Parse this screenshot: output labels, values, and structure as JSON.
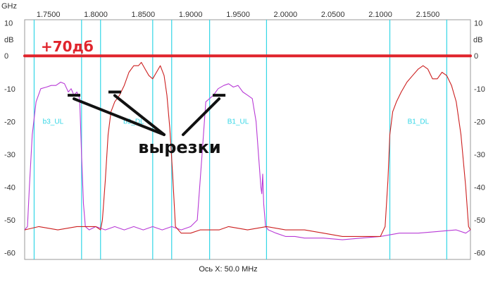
{
  "chart_data": {
    "type": "line",
    "x_unit_label": "GHz",
    "y_unit_label_left": "dB",
    "y_unit_label_right": "dB",
    "xlabel": "Ось X: 50.0 MHz",
    "xlim": [
      1.725,
      2.195
    ],
    "ylim": [
      -62,
      11
    ],
    "x_ticks": [
      "1.7500",
      "1.8000",
      "1.8500",
      "1.9000",
      "1.9500",
      "2.0000",
      "2.0500",
      "2.1000",
      "2.1500"
    ],
    "y_ticks": [
      "10",
      "0",
      "-10",
      "-20",
      "-30",
      "-40",
      "-50",
      "-60"
    ],
    "marker_lines_ghz": [
      1.735,
      1.785,
      1.805,
      1.86,
      1.88,
      1.92,
      1.98,
      2.11,
      2.17
    ],
    "band_labels": [
      {
        "text": "b3_UL",
        "x": 1.755
      },
      {
        "text": "b3_DL",
        "x": 1.84
      },
      {
        "text": "B1_UL",
        "x": 1.95
      },
      {
        "text": "B1_DL",
        "x": 2.14
      }
    ],
    "reference_line": {
      "label": "+70дб",
      "y": 0,
      "color": "#e0242c"
    },
    "annotation": {
      "text": "вырезки",
      "notch_points": [
        [
          1.777,
          -12
        ],
        [
          1.82,
          -11
        ],
        [
          1.93,
          -12
        ]
      ]
    },
    "series": [
      {
        "color": "#b83ad6",
        "points": [
          [
            1.725,
            -53
          ],
          [
            1.728,
            -52
          ],
          [
            1.73,
            -40
          ],
          [
            1.733,
            -24
          ],
          [
            1.737,
            -14
          ],
          [
            1.742,
            -10
          ],
          [
            1.748,
            -9.5
          ],
          [
            1.753,
            -9
          ],
          [
            1.758,
            -9
          ],
          [
            1.763,
            -8
          ],
          [
            1.767,
            -8.5
          ],
          [
            1.771,
            -11
          ],
          [
            1.774,
            -10
          ],
          [
            1.777,
            -12
          ],
          [
            1.78,
            -11
          ],
          [
            1.783,
            -13
          ],
          [
            1.785,
            -30
          ],
          [
            1.787,
            -45
          ],
          [
            1.789,
            -52
          ],
          [
            1.793,
            -53
          ],
          [
            1.8,
            -52
          ],
          [
            1.81,
            -53
          ],
          [
            1.82,
            -52
          ],
          [
            1.83,
            -53
          ],
          [
            1.84,
            -52
          ],
          [
            1.85,
            -53
          ],
          [
            1.86,
            -52
          ],
          [
            1.87,
            -53
          ],
          [
            1.88,
            -52
          ],
          [
            1.89,
            -53
          ],
          [
            1.9,
            -52
          ],
          [
            1.907,
            -50
          ],
          [
            1.912,
            -30
          ],
          [
            1.916,
            -14
          ],
          [
            1.92,
            -13
          ],
          [
            1.924,
            -12
          ],
          [
            1.929,
            -10
          ],
          [
            1.935,
            -9
          ],
          [
            1.94,
            -8.5
          ],
          [
            1.945,
            -9.5
          ],
          [
            1.95,
            -9
          ],
          [
            1.955,
            -11
          ],
          [
            1.96,
            -12
          ],
          [
            1.965,
            -13
          ],
          [
            1.969,
            -20
          ],
          [
            1.972,
            -32
          ],
          [
            1.974,
            -40
          ],
          [
            1.975,
            -42
          ],
          [
            1.976,
            -36
          ],
          [
            1.977,
            -45
          ],
          [
            1.979,
            -52
          ],
          [
            1.982,
            -53
          ],
          [
            1.99,
            -54
          ],
          [
            2.0,
            -55
          ],
          [
            2.01,
            -55
          ],
          [
            2.02,
            -55.5
          ],
          [
            2.04,
            -55.5
          ],
          [
            2.06,
            -56
          ],
          [
            2.08,
            -55.5
          ],
          [
            2.1,
            -55
          ],
          [
            2.12,
            -54
          ],
          [
            2.14,
            -54
          ],
          [
            2.16,
            -53.5
          ],
          [
            2.18,
            -53
          ],
          [
            2.19,
            -54
          ],
          [
            2.195,
            -53
          ]
        ]
      },
      {
        "color": "#cc1f1f",
        "points": [
          [
            1.725,
            -53
          ],
          [
            1.74,
            -52
          ],
          [
            1.76,
            -53
          ],
          [
            1.78,
            -52
          ],
          [
            1.8,
            -52
          ],
          [
            1.805,
            -53
          ],
          [
            1.807,
            -50
          ],
          [
            1.81,
            -38
          ],
          [
            1.813,
            -24
          ],
          [
            1.816,
            -17
          ],
          [
            1.82,
            -14
          ],
          [
            1.825,
            -12
          ],
          [
            1.83,
            -9
          ],
          [
            1.835,
            -5
          ],
          [
            1.84,
            -3
          ],
          [
            1.845,
            -3
          ],
          [
            1.848,
            -2
          ],
          [
            1.852,
            -4
          ],
          [
            1.856,
            -6
          ],
          [
            1.86,
            -7
          ],
          [
            1.864,
            -5
          ],
          [
            1.868,
            -3
          ],
          [
            1.872,
            -6
          ],
          [
            1.875,
            -12
          ],
          [
            1.878,
            -22
          ],
          [
            1.881,
            -36
          ],
          [
            1.884,
            -52
          ],
          [
            1.89,
            -54
          ],
          [
            1.9,
            -54
          ],
          [
            1.91,
            -53
          ],
          [
            1.92,
            -53
          ],
          [
            1.93,
            -53
          ],
          [
            1.94,
            -52
          ],
          [
            1.96,
            -53
          ],
          [
            1.98,
            -52
          ],
          [
            2.0,
            -53
          ],
          [
            2.02,
            -53
          ],
          [
            2.04,
            -54
          ],
          [
            2.06,
            -55
          ],
          [
            2.08,
            -55
          ],
          [
            2.1,
            -55
          ],
          [
            2.105,
            -52
          ],
          [
            2.108,
            -38
          ],
          [
            2.11,
            -24
          ],
          [
            2.113,
            -17
          ],
          [
            2.117,
            -14
          ],
          [
            2.122,
            -11
          ],
          [
            2.128,
            -8
          ],
          [
            2.134,
            -6
          ],
          [
            2.14,
            -4
          ],
          [
            2.145,
            -3
          ],
          [
            2.15,
            -4
          ],
          [
            2.155,
            -7
          ],
          [
            2.16,
            -7
          ],
          [
            2.165,
            -5
          ],
          [
            2.17,
            -6
          ],
          [
            2.175,
            -9
          ],
          [
            2.18,
            -14
          ],
          [
            2.185,
            -24
          ],
          [
            2.19,
            -40
          ],
          [
            2.193,
            -52
          ],
          [
            2.195,
            -53
          ]
        ]
      }
    ]
  }
}
